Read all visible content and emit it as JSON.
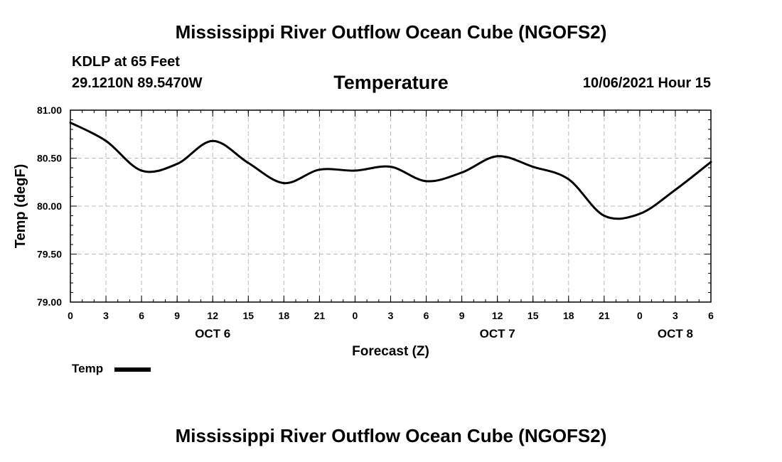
{
  "header": {
    "title": "Mississippi River Outflow Ocean Cube (NGOFS2)",
    "station": "KDLP at 65 Feet",
    "coords": "29.1210N  89.5470W",
    "subtitle": "Temperature",
    "datetime": "10/06/2021 Hour 15"
  },
  "footer": {
    "title": "Mississippi River Outflow Ocean Cube (NGOFS2)"
  },
  "legend": {
    "label": "Temp"
  },
  "colors": {
    "line": "#000000",
    "grid": "#bbbbbb"
  },
  "chart_data": {
    "type": "line",
    "title": "Temperature",
    "xlabel": "Forecast (Z)",
    "ylabel": "Temp (degF)",
    "ylim": [
      79.0,
      81.0
    ],
    "xlim": [
      0,
      54
    ],
    "grid": true,
    "yticks": [
      79.0,
      79.5,
      80.0,
      80.5,
      81.0
    ],
    "ytick_labels": [
      "79.00",
      "79.50",
      "80.00",
      "80.50",
      "81.00"
    ],
    "xticks": [
      0,
      3,
      6,
      9,
      12,
      15,
      18,
      21,
      24,
      27,
      30,
      33,
      36,
      39,
      42,
      45,
      48,
      51,
      54
    ],
    "xtick_labels": [
      "0",
      "3",
      "6",
      "9",
      "12",
      "15",
      "18",
      "21",
      "0",
      "3",
      "6",
      "9",
      "12",
      "15",
      "18",
      "21",
      "0",
      "3",
      "6"
    ],
    "date_labels": [
      {
        "x": 12,
        "label": "OCT 6"
      },
      {
        "x": 36,
        "label": "OCT 7"
      },
      {
        "x": 51,
        "label": "OCT 8"
      }
    ],
    "series": [
      {
        "name": "Temp",
        "x": [
          0,
          3,
          6,
          9,
          12,
          15,
          18,
          21,
          24,
          27,
          30,
          33,
          36,
          39,
          42,
          45,
          48,
          51,
          54
        ],
        "values": [
          80.87,
          80.68,
          80.37,
          80.44,
          80.68,
          80.45,
          80.24,
          80.38,
          80.37,
          80.41,
          80.26,
          80.35,
          80.52,
          80.41,
          80.28,
          79.9,
          79.92,
          80.17,
          80.46
        ]
      }
    ]
  }
}
